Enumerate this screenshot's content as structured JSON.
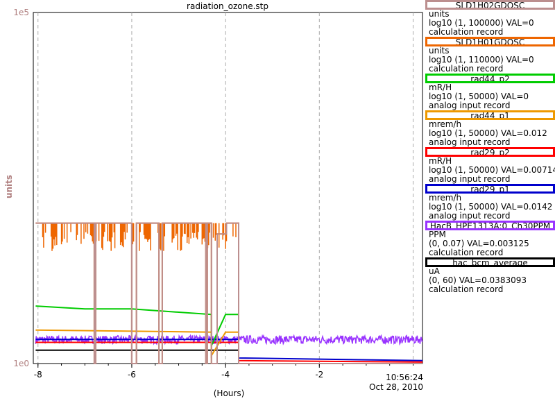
{
  "chart_data": {
    "type": "line",
    "title": "radiation_ozone.stp",
    "xlabel": "(Hours)",
    "ylabel": "units",
    "x_ticks": [
      "-8",
      "-6",
      "-4",
      "-2"
    ],
    "xlim": [
      -8.1,
      0.2
    ],
    "y_ticks": [
      "1e5",
      "1e0"
    ],
    "y_scale": "log",
    "ylim": [
      1,
      100000
    ],
    "grid": true,
    "time_readout": {
      "time": "10:56:24",
      "date": "Oct 28, 2010"
    },
    "series": [
      {
        "name": "SLD1H02GDOSC",
        "color": "#bc8f8f",
        "units": "units",
        "range": "log10 (1, 100000) VAL=0",
        "record": "calculation record",
        "points": [
          [
            -8.05,
            100
          ],
          [
            -6.8,
            100
          ],
          [
            -6.8,
            1
          ],
          [
            -6.77,
            1
          ],
          [
            -6.77,
            100
          ],
          [
            -6.0,
            100
          ],
          [
            -6.0,
            1
          ],
          [
            -5.9,
            1
          ],
          [
            -5.9,
            100
          ],
          [
            -5.42,
            100
          ],
          [
            -5.42,
            1
          ],
          [
            -5.35,
            1
          ],
          [
            -5.35,
            100
          ],
          [
            -4.42,
            100
          ],
          [
            -4.42,
            1
          ],
          [
            -4.39,
            1
          ],
          [
            -4.39,
            100
          ],
          [
            -4.3,
            100
          ],
          [
            -4.3,
            1
          ],
          [
            -4.18,
            1
          ],
          [
            -4.18,
            70
          ],
          [
            -3.98,
            70
          ],
          [
            -3.98,
            100
          ],
          [
            -3.72,
            100
          ],
          [
            -3.72,
            1
          ],
          [
            0.2,
            1
          ]
        ]
      },
      {
        "name": "SLD1H01GDOSC",
        "color": "#ee6600",
        "units": "units",
        "range": "log10 (1, 110000) VAL=0",
        "record": "calculation record",
        "points": [
          [
            -8.05,
            100
          ],
          [
            -6.8,
            100
          ],
          [
            -6.8,
            1
          ],
          [
            -6.77,
            1
          ],
          [
            -6.77,
            100
          ],
          [
            -6.0,
            100
          ],
          [
            -6.0,
            1
          ],
          [
            -5.9,
            1
          ],
          [
            -5.9,
            100
          ],
          [
            -5.42,
            100
          ],
          [
            -5.42,
            1
          ],
          [
            -5.35,
            1
          ],
          [
            -5.35,
            100
          ],
          [
            -4.42,
            100
          ],
          [
            -4.42,
            1
          ],
          [
            -4.39,
            1
          ],
          [
            -4.39,
            100
          ],
          [
            -4.3,
            100
          ],
          [
            -4.3,
            1
          ],
          [
            -4.18,
            1
          ],
          [
            -4.18,
            70
          ],
          [
            -3.98,
            70
          ],
          [
            -3.98,
            100
          ],
          [
            -3.72,
            100
          ],
          [
            -3.72,
            1
          ],
          [
            0.2,
            1
          ]
        ],
        "noise": {
          "from": -7.9,
          "to": -3.75,
          "low": 40,
          "high": 100
        }
      },
      {
        "name": "rad44_p2",
        "color": "#00cc00",
        "units": "mR/H",
        "range": "log10 (1, 50000) VAL=0",
        "record": "analog input record",
        "points": [
          [
            -8.05,
            6.6
          ],
          [
            -7.0,
            6.0
          ],
          [
            -6.0,
            6.0
          ],
          [
            -4.3,
            5.0
          ],
          [
            -4.3,
            1.8
          ],
          [
            -4.0,
            5.0
          ],
          [
            -3.72,
            5.0
          ],
          [
            -3.72,
            1
          ],
          [
            0.2,
            1
          ]
        ]
      },
      {
        "name": "rad44_p1",
        "color": "#ee9900",
        "units": "mrem/h",
        "range": "log10 (1, 50000) VAL=0.012",
        "record": "analog input record",
        "points": [
          [
            -8.05,
            3.0
          ],
          [
            -4.3,
            2.8
          ],
          [
            -4.3,
            1.3
          ],
          [
            -4.0,
            2.8
          ],
          [
            -3.72,
            2.8
          ],
          [
            -3.72,
            1
          ],
          [
            0.2,
            1
          ]
        ]
      },
      {
        "name": "rad29_p2",
        "color": "#ff0000",
        "units": "mR/H",
        "range": "log10 (1, 50000) VAL=0.00714",
        "record": "analog input record",
        "points": [
          [
            -8.05,
            2.0
          ],
          [
            -3.72,
            2.0
          ],
          [
            -3.72,
            1.1
          ],
          [
            0.2,
            1.05
          ]
        ]
      },
      {
        "name": "rad29_p1",
        "color": "#0000cc",
        "units": "mrem/h",
        "range": "log10 (1, 50000) VAL=0.0142",
        "record": "analog input record",
        "points": [
          [
            -8.05,
            2.2
          ],
          [
            -3.72,
            2.2
          ],
          [
            -3.72,
            1.2
          ],
          [
            0.2,
            1.1
          ]
        ]
      },
      {
        "name": "HacB_HPE1313A:0_Ch30PPM",
        "color": "#9933ff",
        "units": "PPM",
        "range": "(0, 0.07) VAL=0.003125",
        "record": "calculation record",
        "points": [
          [
            -8.05,
            2.2
          ],
          [
            0.2,
            2.2
          ]
        ],
        "noise": {
          "from": -8.05,
          "to": 0.2,
          "low": 1.9,
          "high": 2.5
        }
      },
      {
        "name": "hac_bcm_average",
        "color": "#000000",
        "units": "uA",
        "range": "(0, 60) VAL=0.0383093",
        "record": "calculation record",
        "points": [
          [
            -8.05,
            1.55
          ],
          [
            -3.72,
            1.55
          ],
          [
            -3.72,
            1.0
          ],
          [
            0.2,
            1.0
          ]
        ]
      }
    ]
  }
}
